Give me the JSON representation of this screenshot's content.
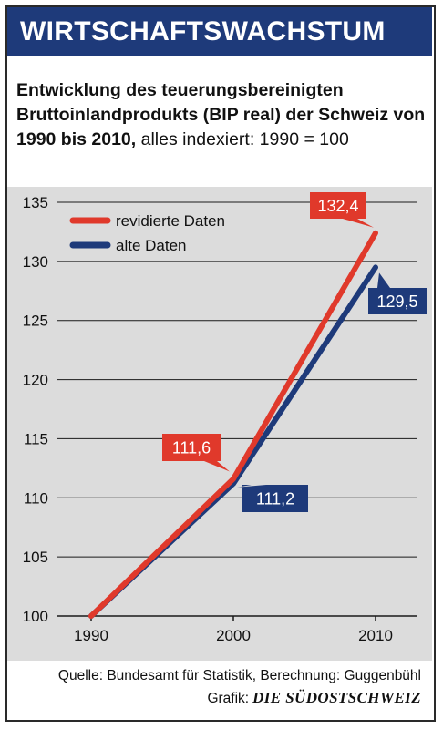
{
  "headline": "WIRTSCHAFTSWACHSTUM",
  "subtitle": {
    "bold": "Entwicklung des teuerungsbereinigten Bruttoinlandprodukts (BIP real) der Schweiz von 1990 bis 2010,",
    "normal": " alles indexiert: 1990 = 100"
  },
  "chart_data": {
    "type": "line",
    "x": [
      "1990",
      "2000",
      "2010"
    ],
    "y_ticks": [
      "100",
      "105",
      "110",
      "115",
      "120",
      "125",
      "130",
      "135"
    ],
    "ylim": [
      100,
      135
    ],
    "grid": true,
    "legend_position": "top-left",
    "series": [
      {
        "name": "revidierte Daten",
        "values": [
          100,
          111.6,
          132.4
        ],
        "labels": [
          "",
          "111,6",
          "132,4"
        ],
        "color": "#e0392b"
      },
      {
        "name": "alte Daten",
        "values": [
          100,
          111.2,
          129.5
        ],
        "labels": [
          "",
          "111,2",
          "129,5"
        ],
        "color": "#1e3a7a"
      }
    ]
  },
  "footer": {
    "source": "Quelle: Bundesamt für Statistik, Berechnung: Guggenbühl",
    "credit_prefix": "Grafik:",
    "brand": "DIE SÜDOSTSCHWEIZ"
  },
  "colors": {
    "header_bg": "#1e3a7a",
    "plot_bg": "#dcdcdc",
    "red": "#e0392b",
    "navy": "#1e3a7a"
  }
}
